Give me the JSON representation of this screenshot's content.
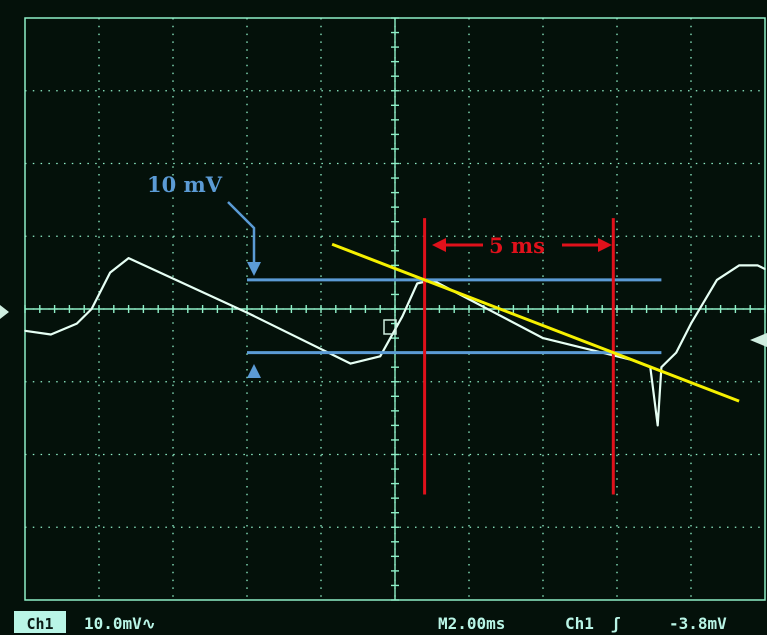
{
  "screen": {
    "background": "#04110a",
    "grid_color": "#8ff0c8",
    "trace_color": "#e6fff4",
    "v_divisions": 10,
    "h_divisions": 8
  },
  "status_bar": {
    "channel_label": "Ch1",
    "vertical_scale": "10.0mV",
    "coupling_symbol": "∿",
    "timebase": "M2.00ms",
    "trigger_source": "Ch1",
    "trigger_slope_symbol": "ʃ",
    "trigger_level": "-3.8mV"
  },
  "annotations": {
    "amplitude_label": "10 mV",
    "amplitude_color": "#5b9bd5",
    "period_label": "5 ms",
    "period_color": "#e0111b",
    "fit_line_color": "#f5f000"
  },
  "chart_data": {
    "type": "line",
    "title": "",
    "xlabel": "",
    "ylabel": "",
    "x_unit": "ms",
    "y_unit": "mV",
    "xlim": [
      -10,
      10
    ],
    "ylim": [
      -40,
      40
    ],
    "grid": true,
    "series": [
      {
        "x": [
          -10.0,
          -9.3,
          -8.6,
          -8.2,
          -7.7,
          -7.2,
          -4.0,
          -1.2,
          -0.4,
          0.2,
          0.6,
          1.0,
          4.0,
          6.4,
          6.9,
          7.1,
          7.2,
          7.4,
          7.6,
          8.0,
          8.7,
          9.3,
          9.8,
          10.0
        ],
        "y": [
          -3.0,
          -3.5,
          -2.0,
          0.0,
          5.0,
          7.0,
          -0.5,
          -7.5,
          -6.5,
          -1.0,
          3.5,
          4.0,
          -4.0,
          -7.0,
          -8.0,
          -16.0,
          -8.0,
          -7.0,
          -6.0,
          -2.0,
          4.0,
          6.0,
          6.0,
          5.5
        ]
      }
    ],
    "markers": {
      "amplitude_mV": 10,
      "period_ms": 5,
      "h_cursors_mV": [
        4.0,
        -6.0
      ],
      "v_cursors_ms": [
        0.8,
        5.9
      ]
    }
  }
}
